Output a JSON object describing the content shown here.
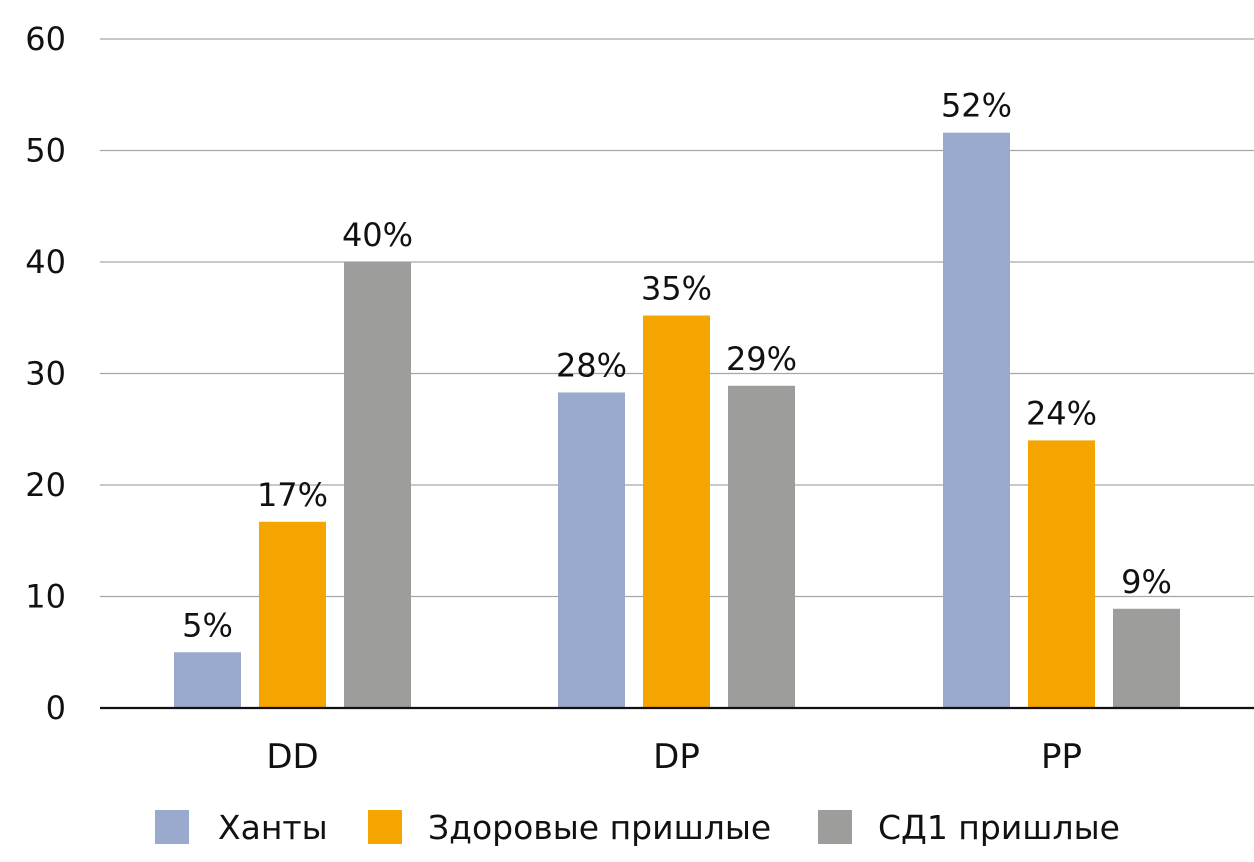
{
  "chart_data": {
    "type": "bar",
    "title": "",
    "xlabel": "",
    "ylabel": "",
    "categories": [
      "DD",
      "DP",
      "PP"
    ],
    "series": [
      {
        "name": "Ханты",
        "color": "#9aaacc",
        "values": [
          5,
          28.3,
          51.6
        ],
        "labels": [
          "5%",
          "28%",
          "52%"
        ]
      },
      {
        "name": "Здоровые пришлые",
        "color": "#f5a500",
        "values": [
          16.7,
          35.2,
          24
        ],
        "labels": [
          "17%",
          "35%",
          "24%"
        ]
      },
      {
        "name": "СД1 пришлые",
        "color": "#9d9d9b",
        "values": [
          40,
          28.9,
          8.9
        ],
        "labels": [
          "40%",
          "29%",
          "9%"
        ]
      }
    ],
    "ylim": [
      0,
      60
    ],
    "yticks": [
      "0",
      "10",
      "20",
      "30",
      "40",
      "50",
      "60"
    ],
    "grid": true,
    "legend": "bottom"
  }
}
